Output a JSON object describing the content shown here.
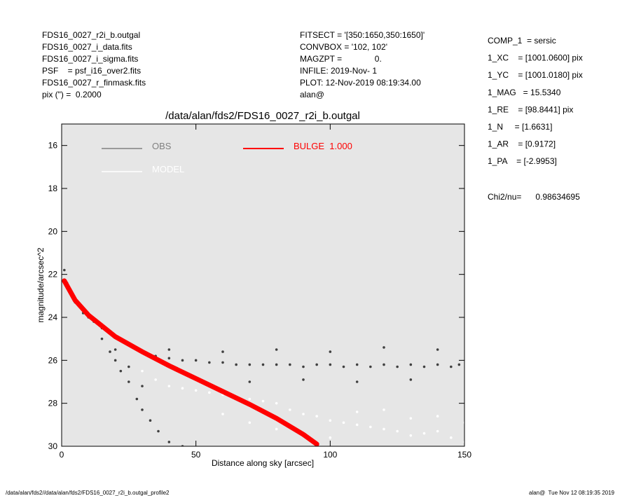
{
  "header_left": [
    "FDS16_0027_r2i_b.outgal",
    "FDS16_0027_i_data.fits",
    "FDS16_0027_i_sigma.fits",
    "PSF    = psf_i16_over2.fits",
    "FDS16_0027_r_finmask.fits",
    "pix (\") =  0.2000"
  ],
  "header_middle": [
    "FITSECT = '[350:1650,350:1650]'",
    "CONVBOX = '102, 102'",
    "MAGZPT =              0.",
    "INFILE: 2019-Nov- 1",
    "PLOT: 12-Nov-2019 08:19:34.00",
    "alan@"
  ],
  "header_right": [
    "COMP_1  = sersic",
    "1_XC    = [1001.0600] pix",
    "1_YC    = [1001.0180] pix",
    "1_MAG   = 15.5340",
    "1_RE    = [98.8441] pix",
    "1_N     = [1.6631]",
    "1_AR    = [0.9172]",
    "1_PA    = [-2.9953]"
  ],
  "chi2": "Chi2/nu=      0.98634695",
  "footer_left": "/data/alan/fds2//data/alan/fds2/FDS16_0027_r2i_b.outgal_profile2",
  "footer_right": "alan@  Tue Nov 12 08:19:35 2019",
  "chart_data": {
    "type": "scatter",
    "title": "/data/alan/fds2/FDS16_0027_r2i_b.outgal",
    "x_label": "Distance along sky [arcsec]",
    "y_label": "magnitude/arcsec^2",
    "xlim": [
      0,
      150
    ],
    "xticks": [
      0,
      50,
      100,
      150
    ],
    "ylim": [
      15,
      30
    ],
    "y_inverted": true,
    "yticks": [
      16,
      18,
      20,
      22,
      24,
      26,
      28,
      30
    ],
    "background": "#e6e6e6",
    "series": [
      {
        "name": "OBS",
        "color": "#808080",
        "point_color": "#404040",
        "mode": "points",
        "x": [
          1,
          2,
          3,
          5,
          8,
          10,
          12,
          15,
          18,
          20,
          25,
          30,
          35,
          40,
          45,
          50,
          55,
          60,
          65,
          70,
          75,
          80,
          85,
          90,
          95,
          100,
          105,
          110,
          115,
          120,
          125,
          130,
          135,
          140,
          145,
          148,
          40,
          60,
          80,
          100,
          120,
          140,
          50,
          70,
          90,
          110,
          130,
          15,
          18,
          20,
          22,
          25,
          28,
          30,
          33,
          36,
          40,
          45,
          20,
          25,
          30
        ],
        "values": [
          21.8,
          22.4,
          22.7,
          23.3,
          23.8,
          24.0,
          24.2,
          24.5,
          24.7,
          24.9,
          25.3,
          25.6,
          25.8,
          25.9,
          26.0,
          26.0,
          26.1,
          26.1,
          26.2,
          26.2,
          26.2,
          26.2,
          26.2,
          26.3,
          26.2,
          26.2,
          26.3,
          26.2,
          26.3,
          26.2,
          26.3,
          26.2,
          26.3,
          26.2,
          26.3,
          26.2,
          25.5,
          25.6,
          25.5,
          25.6,
          25.4,
          25.5,
          26.9,
          27.0,
          26.9,
          27.0,
          26.9,
          25.0,
          25.6,
          26.0,
          26.5,
          27.0,
          27.8,
          28.3,
          28.8,
          29.3,
          29.8,
          30.0,
          25.5,
          26.3,
          27.2
        ]
      },
      {
        "name": "MODEL",
        "color": "#ffffff",
        "point_color": "#ffffff",
        "mode": "points",
        "x": [
          30,
          35,
          40,
          45,
          50,
          55,
          60,
          65,
          70,
          75,
          80,
          85,
          90,
          95,
          100,
          105,
          110,
          115,
          120,
          125,
          130,
          135,
          140,
          145,
          150,
          60,
          70,
          80,
          90,
          100,
          110,
          120,
          130,
          140,
          150
        ],
        "values": [
          26.5,
          26.9,
          27.2,
          27.3,
          27.4,
          27.5,
          27.6,
          27.7,
          27.8,
          27.9,
          28.0,
          28.3,
          28.5,
          28.6,
          28.8,
          28.9,
          29.0,
          29.1,
          29.2,
          29.3,
          29.5,
          29.4,
          29.3,
          29.6,
          29.8,
          28.5,
          28.9,
          29.2,
          29.5,
          29.6,
          28.4,
          28.3,
          28.7,
          28.6,
          28.9
        ]
      },
      {
        "name": "BULGE  1.000",
        "color": "#ff0000",
        "mode": "line",
        "x": [
          1,
          5,
          10,
          15,
          20,
          30,
          40,
          50,
          60,
          70,
          80,
          90,
          95
        ],
        "values": [
          22.3,
          23.2,
          23.9,
          24.4,
          24.9,
          25.6,
          26.25,
          26.85,
          27.45,
          28.05,
          28.7,
          29.45,
          29.9
        ]
      }
    ]
  }
}
